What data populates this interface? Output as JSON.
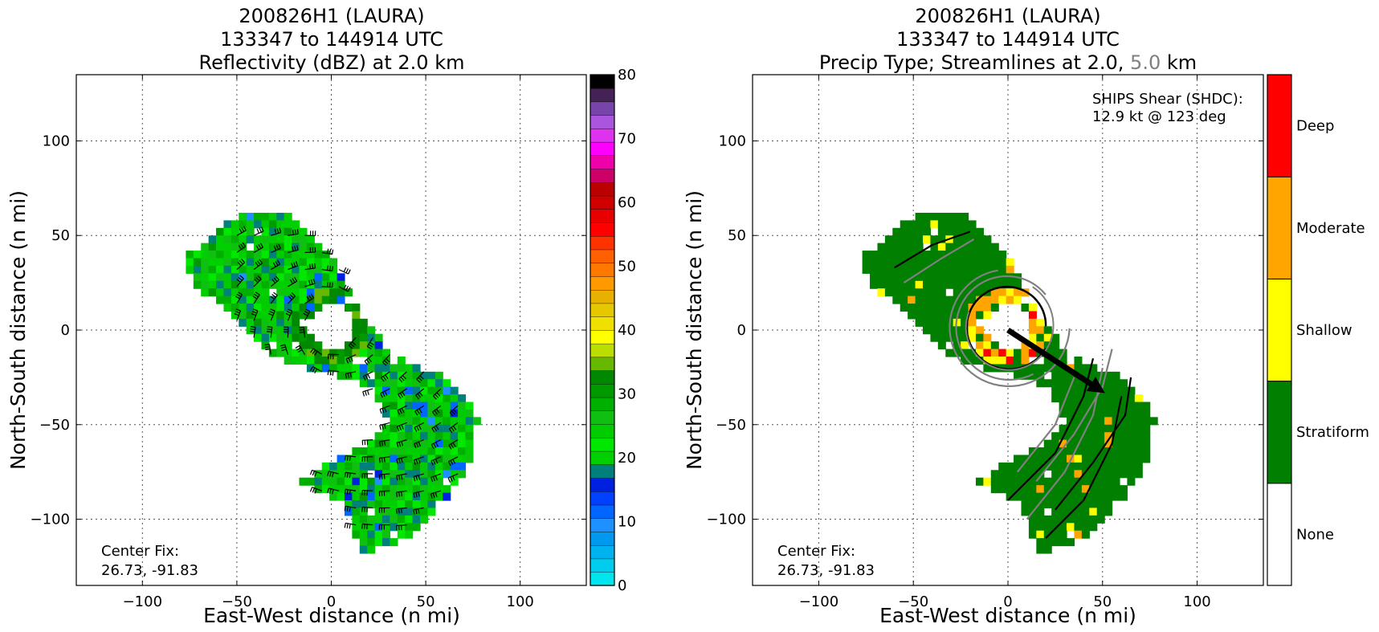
{
  "chart_data": [
    {
      "type": "heatmap",
      "title_lines": [
        "200826H1 (LAURA)",
        "133347 to 144914 UTC",
        "Reflectivity (dBZ) at 2.0 km"
      ],
      "xlabel": "East-West distance (n mi)",
      "ylabel": "North-South distance (n mi)",
      "xlim": [
        -135,
        135
      ],
      "ylim": [
        -135,
        135
      ],
      "xticks": [
        -100,
        -50,
        0,
        50,
        100
      ],
      "yticks": [
        -100,
        -50,
        0,
        50,
        100
      ],
      "xtick_labels": [
        "−100",
        "−50",
        "0",
        "50",
        "100"
      ],
      "ytick_labels": [
        "−100",
        "−50",
        "0",
        "50",
        "100"
      ],
      "grid": true,
      "annotation": {
        "lines": [
          "Center Fix:",
          "26.73, -91.83"
        ]
      },
      "colorbar": {
        "min": 0,
        "max": 80,
        "step": 2.5,
        "ticks": [
          0,
          10,
          20,
          30,
          40,
          50,
          60,
          70,
          80
        ],
        "tick_labels": [
          "0",
          "10",
          "20",
          "30",
          "40",
          "50",
          "60",
          "70",
          "80"
        ],
        "colors": [
          "#00e5ee",
          "#00ccee",
          "#00b2ee",
          "#0099ee",
          "#1e90ff",
          "#0066ff",
          "#0040ff",
          "#0020e0",
          "#00807a",
          "#00d000",
          "#00e800",
          "#00cc00",
          "#10c010",
          "#00b000",
          "#009900",
          "#008800",
          "#66b800",
          "#bbdd00",
          "#ffff00",
          "#f0e000",
          "#e6c800",
          "#e8b000",
          "#ff9900",
          "#ff7800",
          "#ff6000",
          "#ff3300",
          "#ff0000",
          "#e80000",
          "#d00000",
          "#bb0000",
          "#cc0066",
          "#ee00aa",
          "#ff00ff",
          "#dd33ee",
          "#aa55dd",
          "#7744aa",
          "#442255",
          "#000000"
        ]
      },
      "field_note": "reflectivity swath with eyewall ring; wind barbs overlaid",
      "barbs": "present"
    },
    {
      "type": "heatmap",
      "title_lines": [
        "200826H1 (LAURA)",
        "133347 to 144914 UTC"
      ],
      "title_line3_parts": [
        "Precip Type; Streamlines at 2.0, ",
        "5.0",
        " km"
      ],
      "xlabel": "East-West distance (n mi)",
      "ylabel": "North-South distance (n mi)",
      "xlim": [
        -135,
        135
      ],
      "ylim": [
        -135,
        135
      ],
      "xticks": [
        -100,
        -50,
        0,
        50,
        100
      ],
      "yticks": [
        -100,
        -50,
        0,
        50,
        100
      ],
      "xtick_labels": [
        "−100",
        "−50",
        "0",
        "50",
        "100"
      ],
      "ytick_labels": [
        "−100",
        "−50",
        "0",
        "50",
        "100"
      ],
      "grid": true,
      "annotation": {
        "lines": [
          "Center Fix:",
          "26.73, -91.83"
        ]
      },
      "shear_text": {
        "lines": [
          "SHIPS Shear (SHDC):",
          "12.9 kt @ 123 deg"
        ]
      },
      "shear": {
        "speed_kt": 12.9,
        "direction_deg": 123
      },
      "categories": [
        "None",
        "Stratiform",
        "Shallow",
        "Moderate",
        "Deep"
      ],
      "category_colors": [
        "#ffffff",
        "#007f00",
        "#ffff00",
        "#ffa500",
        "#ff0000"
      ],
      "streamline_colors": {
        "2.0 km": "#000000",
        "5.0 km": "#808080"
      }
    }
  ]
}
